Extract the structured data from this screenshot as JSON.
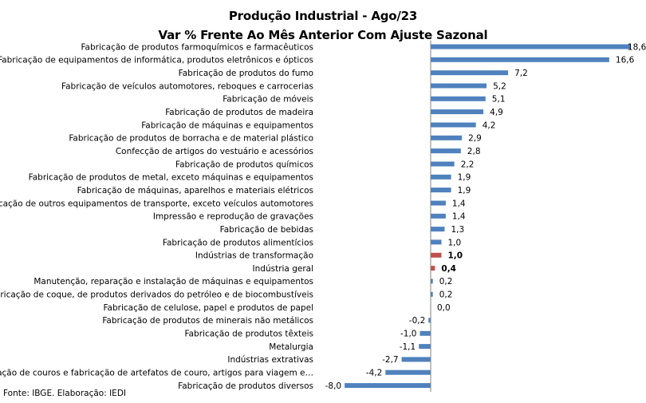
{
  "chart_data": {
    "type": "bar",
    "orientation": "horizontal",
    "title": "Produção Industrial - Ago/23",
    "subtitle": "Var % Frente Ao Mês Anterior Com Ajuste Sazonal",
    "categories": [
      "Fabricação de produtos farmoquímicos e farmacêuticos",
      "Fabricação de equipamentos de informática, produtos eletrônicos e ópticos",
      "Fabricação de produtos do fumo",
      "Fabricação de veículos automotores, reboques e carrocerias",
      "Fabricação de móveis",
      "Fabricação de produtos de madeira",
      "Fabricação de máquinas e equipamentos",
      "Fabricação de produtos de borracha e de material plástico",
      "Confecção de artigos do vestuário e acessórios",
      "Fabricação de produtos químicos",
      "Fabricação de produtos de metal, exceto máquinas e equipamentos",
      "Fabricação de máquinas, aparelhos e materiais elétricos",
      "Fabricação de outros equipamentos de transporte, exceto veículos automotores",
      "Impressão e reprodução de gravações",
      "Fabricação de bebidas",
      "Fabricação de produtos alimentícios",
      "Indústrias de transformação",
      "Indústria geral",
      "Manutenção, reparação e instalação de máquinas e equipamentos",
      "Fabricação de coque, de produtos derivados do petróleo e de biocombustíveis",
      "Fabricação de celulose, papel e produtos de papel",
      "Fabricação de produtos de minerais não metálicos",
      "Fabricação de produtos têxteis",
      "Metalurgia",
      "Indústrias extrativas",
      "Preparação de couros e fabricação de artefatos de couro, artigos para viagem e…",
      "Fabricação de produtos diversos"
    ],
    "values": [
      18.6,
      16.6,
      7.2,
      5.2,
      5.1,
      4.9,
      4.2,
      2.9,
      2.8,
      2.2,
      1.9,
      1.9,
      1.4,
      1.4,
      1.3,
      1.0,
      1.0,
      0.4,
      0.2,
      0.2,
      0.0,
      -0.2,
      -1.0,
      -1.1,
      -2.7,
      -4.2,
      -8.0
    ],
    "value_labels": [
      "18,6",
      "16,6",
      "7,2",
      "5,2",
      "5,1",
      "4,9",
      "4,2",
      "2,9",
      "2,8",
      "2,2",
      "1,9",
      "1,9",
      "1,4",
      "1,4",
      "1,3",
      "1,0",
      "1,0",
      "0,4",
      "0,2",
      "0,2",
      "0,0",
      "-0,2",
      "-1,0",
      "-1,1",
      "-2,7",
      "-4,2",
      "-8,0"
    ],
    "highlighted_categories": [
      "Indústrias de transformação",
      "Indústria geral"
    ],
    "colors": {
      "default": "#4F81BD",
      "highlight": "#C0504D"
    },
    "xlim": [
      -8.0,
      18.6
    ],
    "grid": false,
    "legend": "none"
  },
  "source": "Fonte:  IBGE. Elaboração: IEDI"
}
